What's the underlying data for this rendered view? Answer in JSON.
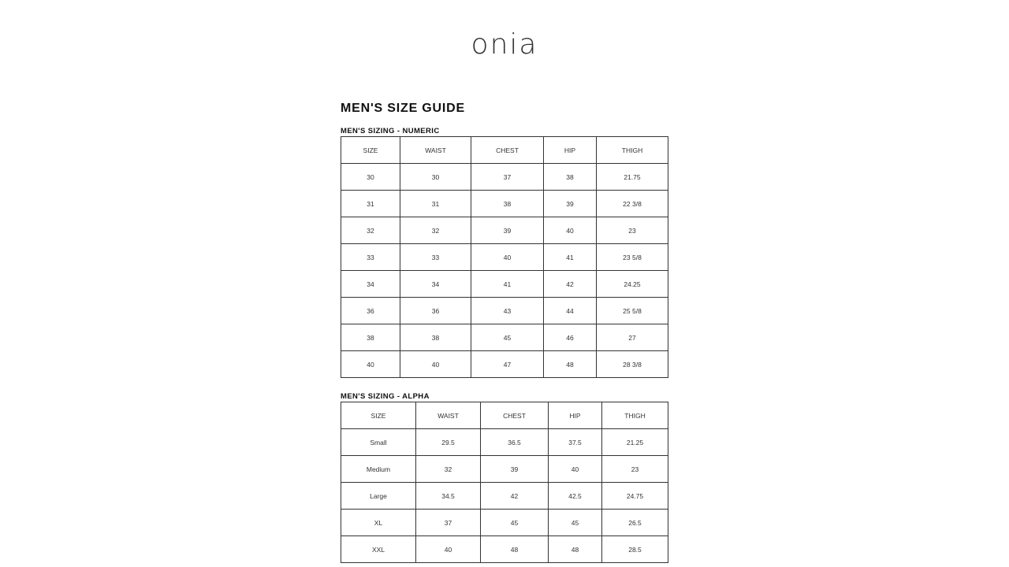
{
  "brand": {
    "logo": "onia"
  },
  "page_title": "MEN'S SIZE GUIDE",
  "numeric": {
    "title": "MEN'S SIZING - NUMERIC",
    "headers": [
      "SIZE",
      "WAIST",
      "CHEST",
      "HIP",
      "THIGH"
    ],
    "rows": [
      [
        "30",
        "30",
        "37",
        "38",
        "21.75"
      ],
      [
        "31",
        "31",
        "38",
        "39",
        "22 3/8"
      ],
      [
        "32",
        "32",
        "39",
        "40",
        "23"
      ],
      [
        "33",
        "33",
        "40",
        "41",
        "23 5/8"
      ],
      [
        "34",
        "34",
        "41",
        "42",
        "24.25"
      ],
      [
        "36",
        "36",
        "43",
        "44",
        "25 5/8"
      ],
      [
        "38",
        "38",
        "45",
        "46",
        "27"
      ],
      [
        "40",
        "40",
        "47",
        "48",
        "28 3/8"
      ]
    ]
  },
  "alpha": {
    "title": "MEN'S SIZING - ALPHA",
    "headers": [
      "SIZE",
      "WAIST",
      "CHEST",
      "HIP",
      "THIGH"
    ],
    "rows": [
      [
        "Small",
        "29.5",
        "36.5",
        "37.5",
        "21.25"
      ],
      [
        "Medium",
        "32",
        "39",
        "40",
        "23"
      ],
      [
        "Large",
        "34.5",
        "42",
        "42.5",
        "24.75"
      ],
      [
        "XL",
        "37",
        "45",
        "45",
        "26.5"
      ],
      [
        "XXL",
        "40",
        "48",
        "48",
        "28.5"
      ]
    ]
  }
}
